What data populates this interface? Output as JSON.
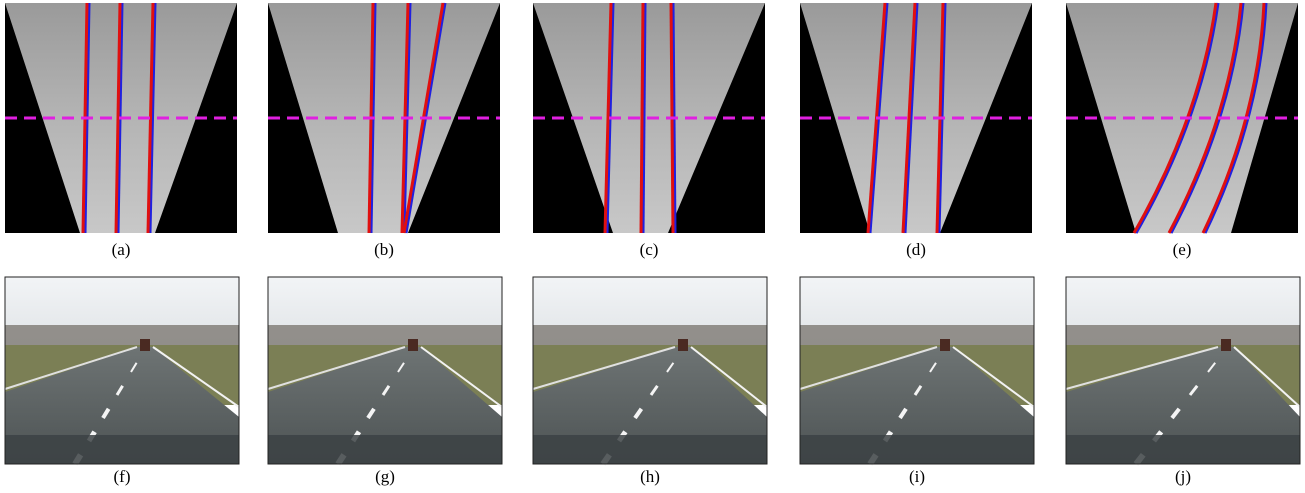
{
  "top_row": {
    "labels": [
      "(a)",
      "(b)",
      "(c)",
      "(d)",
      "(e)"
    ]
  },
  "bottom_row": {
    "labels": [
      "(f)",
      "(g)",
      "(h)",
      "(i)",
      "(j)"
    ]
  }
}
